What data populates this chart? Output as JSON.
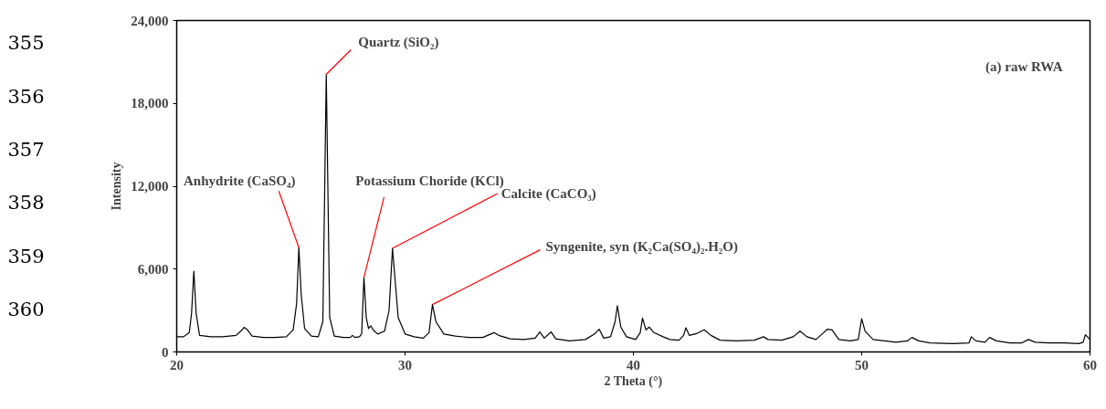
{
  "chart_data": {
    "type": "line",
    "xlabel": "2 Theta (°)",
    "ylabel": "Intensity",
    "xlim": [
      20,
      60
    ],
    "ylim": [
      0,
      24000
    ],
    "xticks": [
      20,
      30,
      40,
      50,
      60
    ],
    "yticks": [
      {
        "value": 0,
        "label": "0"
      },
      {
        "value": 6000,
        "label": "6,000"
      },
      {
        "value": 12000,
        "label": "12,000"
      },
      {
        "value": 18000,
        "label": "18,000"
      },
      {
        "value": 24000,
        "label": "24,000"
      }
    ],
    "grid": false,
    "marker": "none",
    "line_style": "solid",
    "series": [
      {
        "color": "#000000",
        "x": [
          20.0,
          20.3,
          20.55,
          20.65,
          20.75,
          20.85,
          21.0,
          21.5,
          22.0,
          22.6,
          22.8,
          22.95,
          23.1,
          23.3,
          23.8,
          24.3,
          24.8,
          25.1,
          25.25,
          25.35,
          25.45,
          25.6,
          25.9,
          26.2,
          26.4,
          26.55,
          26.7,
          26.9,
          27.3,
          27.6,
          27.7,
          27.8,
          28.0,
          28.1,
          28.2,
          28.3,
          28.4,
          28.5,
          28.6,
          28.8,
          29.1,
          29.3,
          29.45,
          29.7,
          30.0,
          30.4,
          30.8,
          31.05,
          31.2,
          31.35,
          31.7,
          32.2,
          32.8,
          33.4,
          33.9,
          34.1,
          34.6,
          35.2,
          35.7,
          35.9,
          36.1,
          36.4,
          36.6,
          37.2,
          37.9,
          38.3,
          38.5,
          38.7,
          39.0,
          39.2,
          39.3,
          39.45,
          39.7,
          40.1,
          40.3,
          40.4,
          40.55,
          40.7,
          40.9,
          41.3,
          41.6,
          42.0,
          42.2,
          42.3,
          42.45,
          42.8,
          43.1,
          43.4,
          43.8,
          44.5,
          45.3,
          45.7,
          45.9,
          46.5,
          47.0,
          47.3,
          47.6,
          48.0,
          48.3,
          48.5,
          48.7,
          49.0,
          49.5,
          49.85,
          50.0,
          50.15,
          50.5,
          51.0,
          51.5,
          52.0,
          52.2,
          52.5,
          53.0,
          54.0,
          54.7,
          54.8,
          55.0,
          55.4,
          55.6,
          55.9,
          56.5,
          57.0,
          57.3,
          57.6,
          58.2,
          58.9,
          59.5,
          59.7,
          59.8,
          60.0
        ],
        "values": [
          1100,
          1100,
          1400,
          2800,
          5850,
          2800,
          1200,
          1100,
          1100,
          1200,
          1500,
          1780,
          1600,
          1150,
          1050,
          1050,
          1100,
          1600,
          3500,
          7550,
          4200,
          1700,
          1150,
          1100,
          2200,
          20100,
          2500,
          1150,
          1050,
          1050,
          1200,
          1050,
          1100,
          1300,
          5400,
          2500,
          1700,
          1900,
          1600,
          1300,
          1500,
          3000,
          7500,
          2500,
          1300,
          1100,
          1000,
          1400,
          3430,
          2200,
          1300,
          1150,
          1050,
          1050,
          1400,
          1200,
          950,
          900,
          1000,
          1450,
          1000,
          1450,
          950,
          800,
          900,
          1300,
          1650,
          1000,
          1100,
          2200,
          3350,
          1800,
          1100,
          900,
          1400,
          2450,
          1600,
          1800,
          1400,
          1100,
          900,
          850,
          1200,
          1750,
          1200,
          1350,
          1600,
          1200,
          850,
          800,
          850,
          1100,
          900,
          850,
          1100,
          1500,
          1100,
          900,
          1350,
          1650,
          1600,
          900,
          800,
          900,
          2400,
          1500,
          900,
          800,
          700,
          800,
          1050,
          800,
          650,
          600,
          650,
          1100,
          800,
          700,
          1050,
          800,
          650,
          650,
          900,
          700,
          650,
          650,
          600,
          700,
          1250,
          900
        ]
      }
    ],
    "annotations": [
      {
        "text": "Anhydrite (CaSO₄)",
        "x": 25.35,
        "y": 7550
      },
      {
        "text": "Quartz (SiO₂)",
        "x": 26.55,
        "y": 20100
      },
      {
        "text": "Potassium Choride (KCl)",
        "x": 28.2,
        "y": 5400
      },
      {
        "text": "Calcite (CaCO₃)",
        "x": 29.45,
        "y": 7500
      },
      {
        "text": "Syngenite, syn  (K₂Ca(SO₄)₂.H₂O)",
        "x": 31.2,
        "y": 3430
      },
      "(a) raw RWA",
      "355",
      "356",
      "357",
      "358",
      "359",
      "360"
    ]
  }
}
